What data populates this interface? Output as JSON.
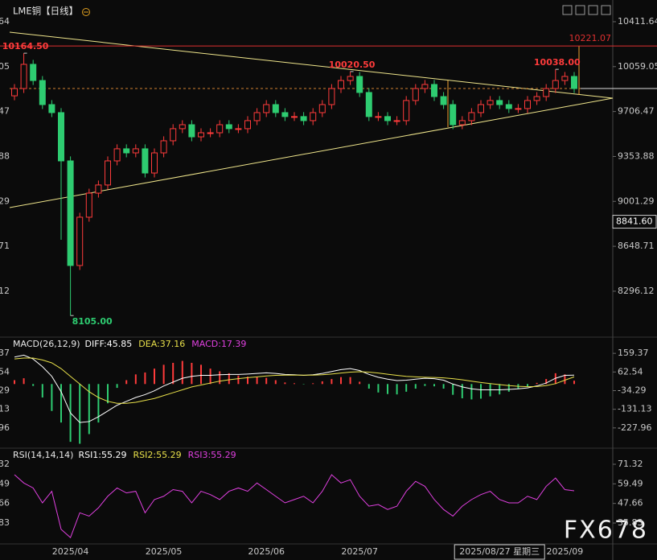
{
  "chart_data": {
    "type": "candlestick",
    "title": "LME铜【日线】",
    "categories": [
      null,
      null,
      null,
      null,
      null,
      null,
      "2025/04",
      null,
      null,
      null,
      null,
      null,
      null,
      null,
      null,
      null,
      "2025/05",
      null,
      null,
      null,
      null,
      null,
      null,
      null,
      null,
      null,
      null,
      "2025/06",
      null,
      null,
      null,
      null,
      null,
      null,
      null,
      null,
      null,
      "2025/07",
      null,
      null,
      null,
      null,
      null,
      null,
      null,
      null,
      null,
      null,
      null,
      null,
      null,
      null,
      null,
      null,
      null,
      null,
      null,
      null,
      null,
      "2025/09",
      null
    ],
    "open": [
      9830,
      9887,
      10077,
      9950,
      9761,
      9698,
      9319,
      8498,
      8877,
      9066,
      9130,
      9319,
      9414,
      9382,
      9414,
      9224,
      9382,
      9477,
      9572,
      9603,
      9508,
      9540,
      9540,
      9603,
      9572,
      9572,
      9635,
      9698,
      9761,
      9698,
      9667,
      9667,
      9635,
      9698,
      9761,
      9887,
      9950,
      9982,
      9856,
      9667,
      9667,
      9635,
      9635,
      9793,
      9887,
      9919,
      9824,
      9761,
      9603,
      9635,
      9698,
      9761,
      9793,
      9761,
      9730,
      9730,
      9793,
      9824,
      9887,
      9950,
      9982
    ],
    "high": [
      9922,
      10164.5,
      10112,
      9985,
      9796,
      9733,
      9354,
      8912,
      9101,
      9165,
      9354,
      9449,
      9449,
      9449,
      9449,
      9417,
      9512,
      9607,
      9638,
      9638,
      9575,
      9575,
      9638,
      9638,
      9607,
      9670,
      9733,
      9796,
      9796,
      9733,
      9702,
      9702,
      9733,
      9796,
      9922,
      9985,
      10020.5,
      10017,
      9891,
      9702,
      9702,
      9670,
      9828,
      9922,
      9954,
      9954,
      9859,
      9796,
      9670,
      9733,
      9796,
      9828,
      9828,
      9796,
      9765,
      9828,
      9859,
      9922,
      10038,
      10017,
      10017
    ],
    "low": [
      9795,
      9852,
      9915,
      9726,
      9663,
      8700,
      8105,
      8463,
      8842,
      9031,
      9095,
      9284,
      9347,
      9347,
      9189,
      9189,
      9347,
      9442,
      9537,
      9473,
      9473,
      9505,
      9505,
      9537,
      9537,
      9537,
      9600,
      9663,
      9663,
      9632,
      9632,
      9600,
      9600,
      9663,
      9726,
      9852,
      9915,
      9821,
      9632,
      9632,
      9600,
      9600,
      9600,
      9758,
      9852,
      9789,
      9726,
      9568,
      9568,
      9600,
      9663,
      9726,
      9726,
      9695,
      9695,
      9695,
      9758,
      9789,
      9852,
      9915,
      9852
    ],
    "close": [
      9887,
      10077,
      9950,
      9761,
      9698,
      9319,
      8498,
      8877,
      9066,
      9130,
      9319,
      9414,
      9382,
      9414,
      9224,
      9382,
      9477,
      9572,
      9603,
      9508,
      9540,
      9540,
      9603,
      9572,
      9572,
      9635,
      9698,
      9761,
      9698,
      9667,
      9667,
      9635,
      9698,
      9761,
      9887,
      9950,
      9982,
      9856,
      9667,
      9667,
      9635,
      9635,
      9793,
      9887,
      9919,
      9824,
      9761,
      9603,
      9635,
      9698,
      9761,
      9793,
      9761,
      9730,
      9730,
      9793,
      9824,
      9887,
      9950,
      9982,
      9887
    ],
    "up_color": "#ff3b3b",
    "down_color": "#2ecc71",
    "ylim": [
      7942,
      10582
    ],
    "yticks": [
      10411.64,
      10059.05,
      9706.47,
      9353.88,
      9001.29,
      8648.71,
      8296.12
    ],
    "annotations": [
      {
        "value": 10164.5,
        "label": "10164.50"
      },
      {
        "value": 10020.5,
        "label": "10020.50"
      },
      {
        "value": 10038,
        "label": "10038.00"
      },
      {
        "value": 8105,
        "label": "8105.00"
      }
    ],
    "resistance": {
      "value": 10221.07,
      "label": "10221.07",
      "color": "#e03030"
    },
    "crosshair": {
      "y": {
        "value": 8841.6,
        "label": "8841.60"
      },
      "x_label": "2025/08/27 星期三"
    },
    "macd": {
      "title": "MACD(26,12,9)",
      "ylim": [
        -324.8,
        239.4
      ],
      "yticks": [
        159.37,
        62.54,
        -34.29,
        -131.13,
        -227.96
      ],
      "series": [
        {
          "name": "DIFF:",
          "value": 45.85,
          "color": "#ffffff",
          "values": [
            140,
            150,
            130,
            90,
            40,
            -40,
            -150,
            -200,
            -195,
            -170,
            -140,
            -110,
            -90,
            -70,
            -55,
            -35,
            -10,
            10,
            30,
            40,
            45,
            45,
            48,
            50,
            50,
            52,
            55,
            58,
            55,
            50,
            48,
            45,
            48,
            55,
            65,
            75,
            80,
            70,
            50,
            35,
            25,
            18,
            20,
            25,
            30,
            28,
            20,
            0,
            -15,
            -25,
            -30,
            -30,
            -30,
            -28,
            -25,
            -20,
            -10,
            5,
            30,
            45,
            45.85
          ]
        },
        {
          "name": "DEA:",
          "value": 37.16,
          "color": "#e8e04a",
          "values": [
            130,
            135,
            135,
            125,
            110,
            80,
            40,
            0,
            -40,
            -70,
            -90,
            -100,
            -100,
            -95,
            -85,
            -75,
            -60,
            -45,
            -30,
            -15,
            -5,
            5,
            15,
            22,
            28,
            33,
            37,
            42,
            45,
            46,
            46,
            46,
            46,
            48,
            52,
            57,
            62,
            64,
            62,
            57,
            51,
            45,
            40,
            37,
            35,
            34,
            32,
            28,
            22,
            15,
            8,
            2,
            -3,
            -8,
            -12,
            -14,
            -13,
            -8,
            2,
            20,
            37.16
          ]
        },
        {
          "name": "MACD:",
          "value": 17.39,
          "color": "#e040e0",
          "style": "histogram",
          "values": [
            20,
            30,
            -10,
            -70,
            -140,
            -200,
            -300,
            -310,
            -260,
            -200,
            -100,
            -20,
            20,
            50,
            60,
            80,
            100,
            110,
            120,
            110,
            100,
            80,
            66,
            56,
            44,
            38,
            36,
            32,
            20,
            8,
            4,
            -2,
            4,
            14,
            26,
            36,
            36,
            12,
            -24,
            -44,
            -52,
            -54,
            -40,
            -24,
            -10,
            -12,
            -24,
            -56,
            -74,
            -80,
            -76,
            -64,
            -54,
            -40,
            -26,
            -12,
            6,
            26,
            56,
            50,
            17.39
          ]
        }
      ]
    },
    "rsi": {
      "title": "RSI(14,14,14)",
      "ylim": [
        23.2,
        80.56
      ],
      "yticks": [
        71.32,
        59.49,
        47.66,
        35.83
      ],
      "series": [
        {
          "name": "RSI1:",
          "value": 55.29,
          "color": "#ffffff"
        },
        {
          "name": "RSI2:",
          "value": 55.29,
          "color": "#e8e04a"
        },
        {
          "name": "RSI3:",
          "value": 55.29,
          "color": "#e040e0",
          "values": [
            65,
            60,
            57,
            48,
            55,
            32,
            27,
            42,
            40,
            45,
            52,
            57,
            54,
            55,
            42,
            50,
            52,
            56,
            55,
            48,
            55,
            53,
            50,
            55,
            57,
            55,
            60,
            56,
            52,
            48,
            50,
            52,
            48,
            55,
            65,
            60,
            62,
            52,
            46,
            47,
            44,
            46,
            55,
            61,
            58,
            50,
            44,
            40,
            46,
            50,
            53,
            55,
            50,
            48,
            48,
            52,
            50,
            58,
            63,
            56,
            55.29
          ]
        }
      ]
    }
  },
  "watermark": "FX678"
}
